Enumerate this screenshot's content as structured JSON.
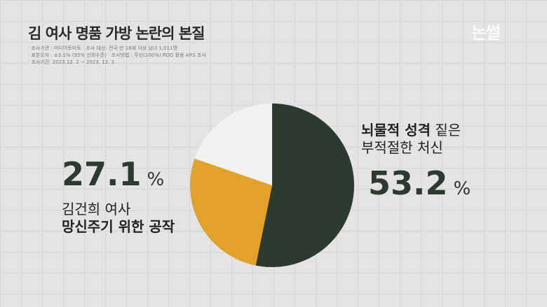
{
  "title": "김 여사 명품 가방 논란의 본질",
  "meta": [
    "· 조사기관 : 미디어토마토   · 조사 대상: 전국 만 18세 이상 남녀 1,011명",
    "· 표본오차 : ±3.1% (95% 신뢰수준) · 조사방법 : 무선(100%) RDD 활용 ARS 조사",
    "· 조사기간: 2023.12. 2 ~ 2023. 12. 3"
  ],
  "logo": "논썰",
  "chart_data": {
    "type": "pie",
    "slices": [
      {
        "label": "뇌물적 성격 짙은 부적절한 처신",
        "value": 53.2,
        "color": "#2d3a30"
      },
      {
        "label": "김건희 여사 망신주기 위한 공작",
        "value": 27.1,
        "color": "#e2a128"
      },
      {
        "label": "",
        "value": 19.7,
        "color": "#f2f2f2"
      }
    ]
  },
  "left": {
    "value": "27.1",
    "unit": "%",
    "line1": "김건희 여사",
    "line2": "망신주기 위한 공작"
  },
  "right": {
    "value": "53.2",
    "unit": "%",
    "bold": "뇌물적 성격",
    "rest": " 짙은",
    "line2": "부적절한 처신"
  }
}
